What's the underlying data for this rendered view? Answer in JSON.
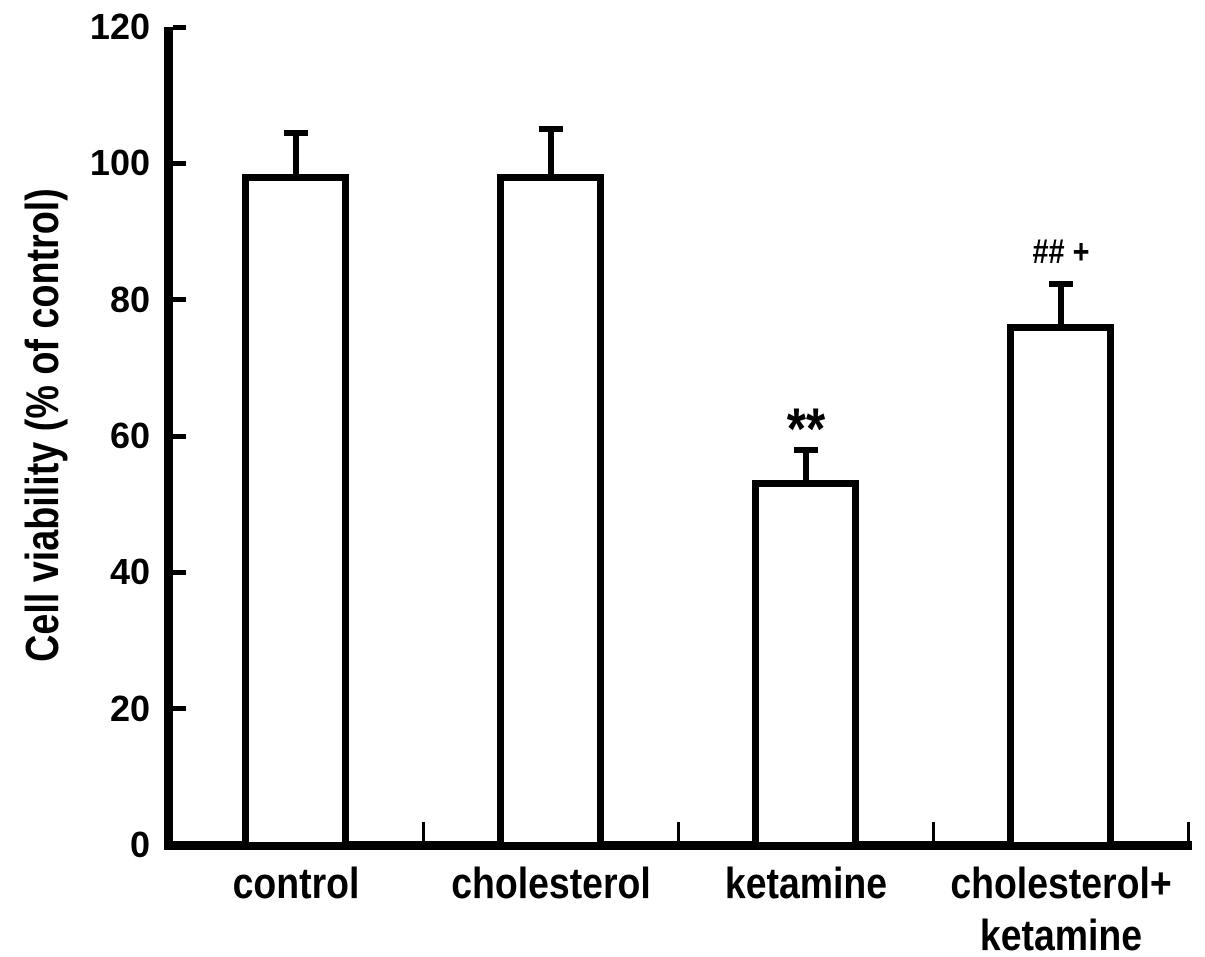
{
  "figure": {
    "background": "#ffffff",
    "ink": "#000000"
  },
  "chart_data": {
    "type": "bar",
    "title": "",
    "xlabel": "",
    "ylabel": "Cell viability (% of control)",
    "categories": [
      "control",
      "cholesterol",
      "ketamine",
      "cholesterol+\nketamine"
    ],
    "values": [
      98.5,
      98.5,
      53.5,
      76.5
    ],
    "errors_plus": [
      6.0,
      6.5,
      4.5,
      5.8
    ],
    "annotations": [
      "",
      "",
      "**",
      "## +"
    ],
    "yticks": [
      0,
      20,
      40,
      60,
      80,
      100,
      120
    ],
    "ytick_labels": [
      "0",
      "20",
      "40",
      "60",
      "80",
      "100",
      "120"
    ],
    "ylim": [
      0,
      120
    ],
    "grid": false,
    "legend": false,
    "bar_fill": "#ffffff",
    "bar_border": "#000000"
  }
}
